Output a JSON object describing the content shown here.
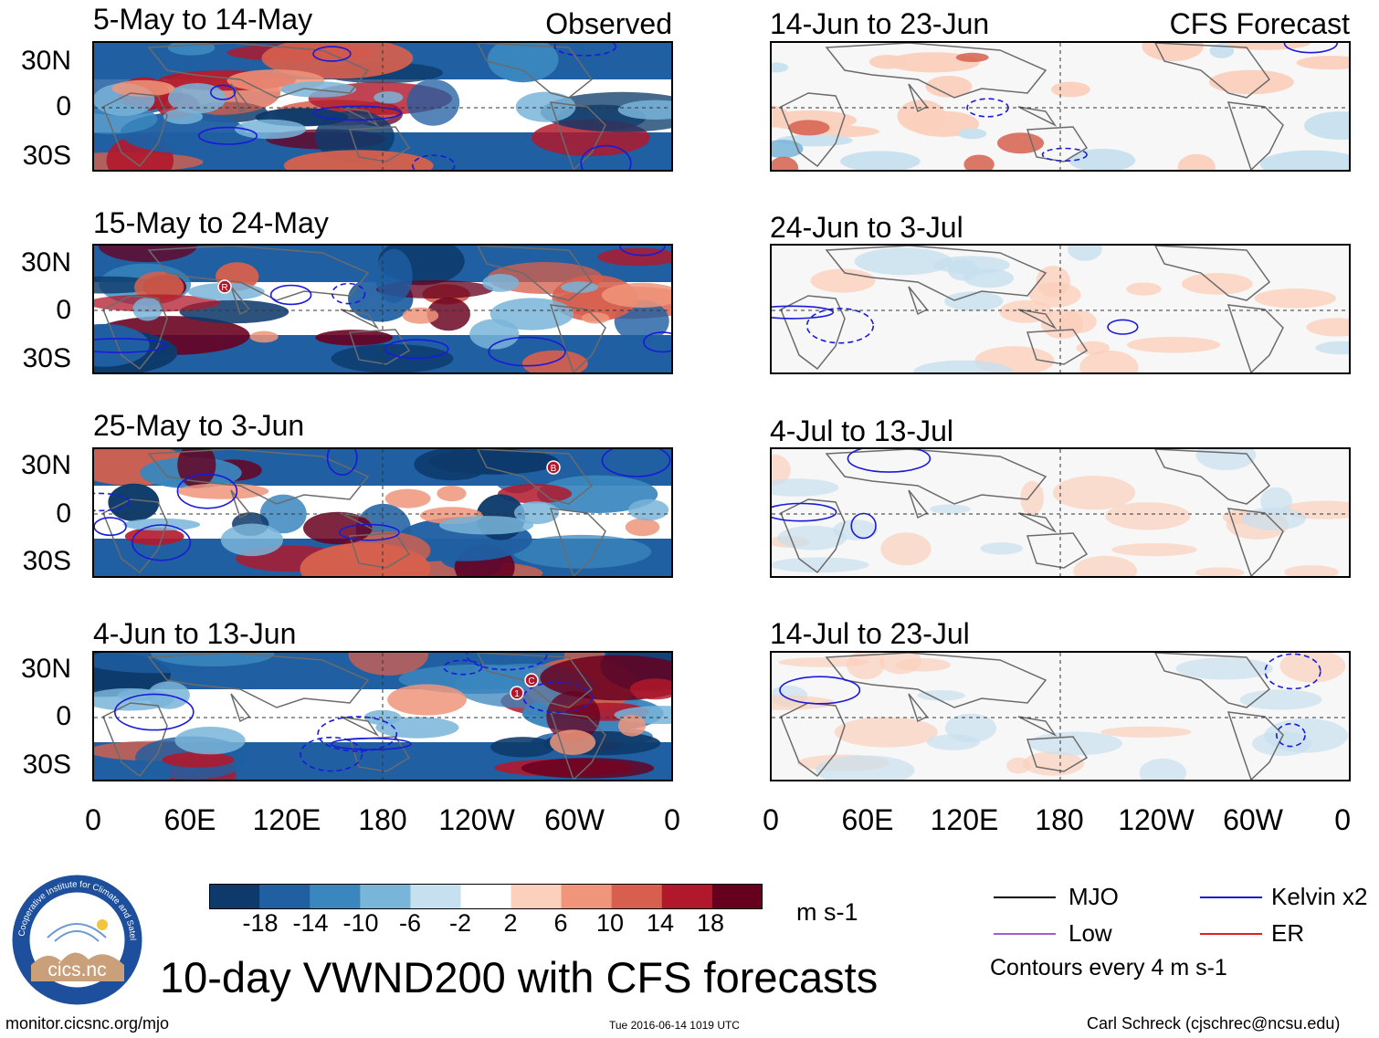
{
  "observed_label": "Observed",
  "forecast_label": "CFS Forecast",
  "observed_panels": [
    {
      "title": "5-May to 14-May"
    },
    {
      "title": "15-May to 24-May"
    },
    {
      "title": "25-May to 3-Jun"
    },
    {
      "title": "4-Jun to 13-Jun"
    }
  ],
  "forecast_panels": [
    {
      "title": "14-Jun to 23-Jun"
    },
    {
      "title": "24-Jun to 3-Jul"
    },
    {
      "title": "4-Jul to 13-Jul"
    },
    {
      "title": "14-Jul to 23-Jul"
    }
  ],
  "lat_labels": [
    "30N",
    "0",
    "30S"
  ],
  "lon_labels": [
    "0",
    "60E",
    "120E",
    "180",
    "120W",
    "60W",
    "0"
  ],
  "colorbar": {
    "units": "m s-1",
    "labels": [
      "-18",
      "-14",
      "-10",
      "-6",
      "-2",
      "2",
      "6",
      "10",
      "14",
      "18"
    ],
    "colors": [
      "#0d3a6b",
      "#1f5fa2",
      "#3a86be",
      "#79b4d9",
      "#c7e0ef",
      "#ffffff",
      "#fbd0bc",
      "#f0957a",
      "#d6604d",
      "#b2182b",
      "#67001f"
    ]
  },
  "legend": {
    "items": [
      {
        "label": "MJO",
        "color": "#000000"
      },
      {
        "label": "Kelvin x2",
        "color": "#1a1adb"
      },
      {
        "label": "Low",
        "color": "#a65bd6"
      },
      {
        "label": "ER",
        "color": "#e0201e"
      }
    ],
    "contours_note": "Contours every 4 m s-1"
  },
  "main_title": "10-day VWND200 with CFS forecasts",
  "logo": {
    "name": "cics.nc",
    "ring_text": "Cooperative Institute for Climate and Satellites"
  },
  "footer": {
    "website": "monitor.cicsnc.org/mjo",
    "timestamp": "Tue 2016-06-14 1019 UTC",
    "author": "Carl Schreck (cjschrec@ncsu.edu)"
  },
  "storm_markers": {
    "p1": [
      "R"
    ],
    "p2": [
      "B"
    ],
    "p3": [
      "1",
      "C"
    ]
  }
}
